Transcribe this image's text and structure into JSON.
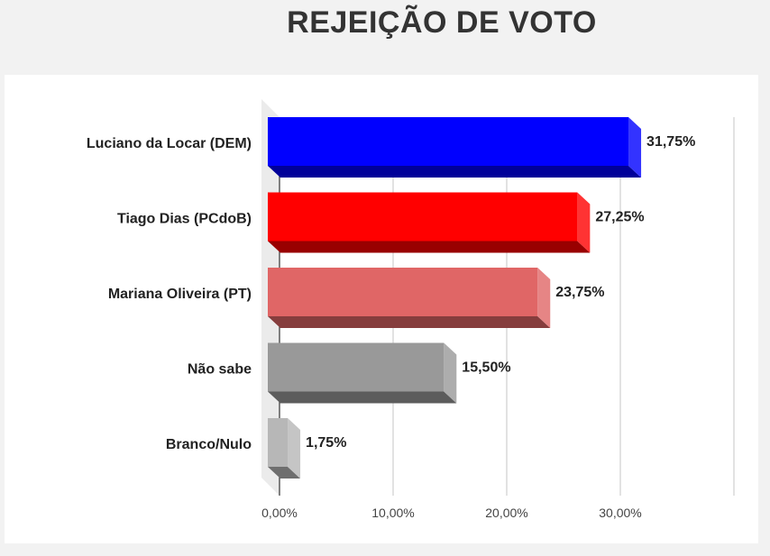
{
  "chart_data": {
    "type": "bar",
    "orientation": "horizontal",
    "title": "REJEIÇÃO DE VOTO",
    "categories": [
      "Luciano da Locar (DEM)",
      "Tiago Dias (PCdoB)",
      "Mariana Oliveira (PT)",
      "Não sabe",
      "Branco/Nulo"
    ],
    "values": [
      31.75,
      27.25,
      23.75,
      15.5,
      1.75
    ],
    "value_labels": [
      "31,75%",
      "27,25%",
      "23,75%",
      "15,50%",
      "1,75%"
    ],
    "colors": [
      "#0000ff",
      "#ff0000",
      "#e06666",
      "#999999",
      "#b7b7b7"
    ],
    "xlim": [
      0,
      40
    ],
    "x_ticks": [
      0,
      10,
      20,
      30
    ],
    "x_tick_labels": [
      "0,00%",
      "10,00%",
      "20,00%",
      "30,00%"
    ],
    "grid": true,
    "xlabel": "",
    "ylabel": ""
  }
}
